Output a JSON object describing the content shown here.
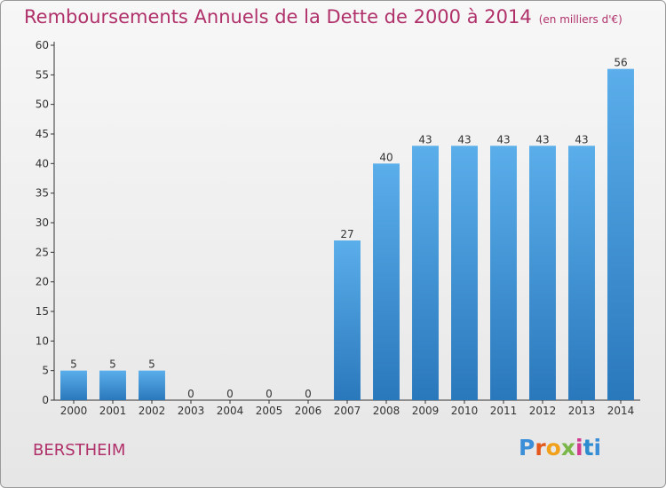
{
  "header": {
    "title": "Remboursements Annuels de la Dette de 2000 à 2014",
    "unit": "(en milliers d'€)"
  },
  "footer": {
    "commune": "BERSTHEIM",
    "logo_text": "Proxiti",
    "logo_colors": [
      "#3b8fd8",
      "#e4591b",
      "#f1a019",
      "#7ab648",
      "#d23c8f",
      "#2c8ccf"
    ]
  },
  "chart_data": {
    "type": "bar",
    "title": "Remboursements Annuels de la Dette de 2000 à 2014",
    "subtitle": "(en milliers d'€)",
    "xlabel": "",
    "ylabel": "",
    "categories": [
      "2000",
      "2001",
      "2002",
      "2003",
      "2004",
      "2005",
      "2006",
      "2007",
      "2008",
      "2009",
      "2010",
      "2011",
      "2012",
      "2013",
      "2014"
    ],
    "values": [
      5,
      5,
      5,
      0,
      0,
      0,
      0,
      27,
      40,
      43,
      43,
      43,
      43,
      43,
      56
    ],
    "data_labels": [
      "5",
      "5",
      "5",
      "0",
      "0",
      "0",
      "0",
      "27",
      "40",
      "43",
      "43",
      "43",
      "43",
      "43",
      "56"
    ],
    "ylim": [
      0,
      60
    ],
    "yticks": [
      0,
      5,
      10,
      15,
      20,
      25,
      30,
      35,
      40,
      45,
      50,
      55,
      60
    ],
    "grid": false,
    "bar_color": "#4a9de0"
  }
}
